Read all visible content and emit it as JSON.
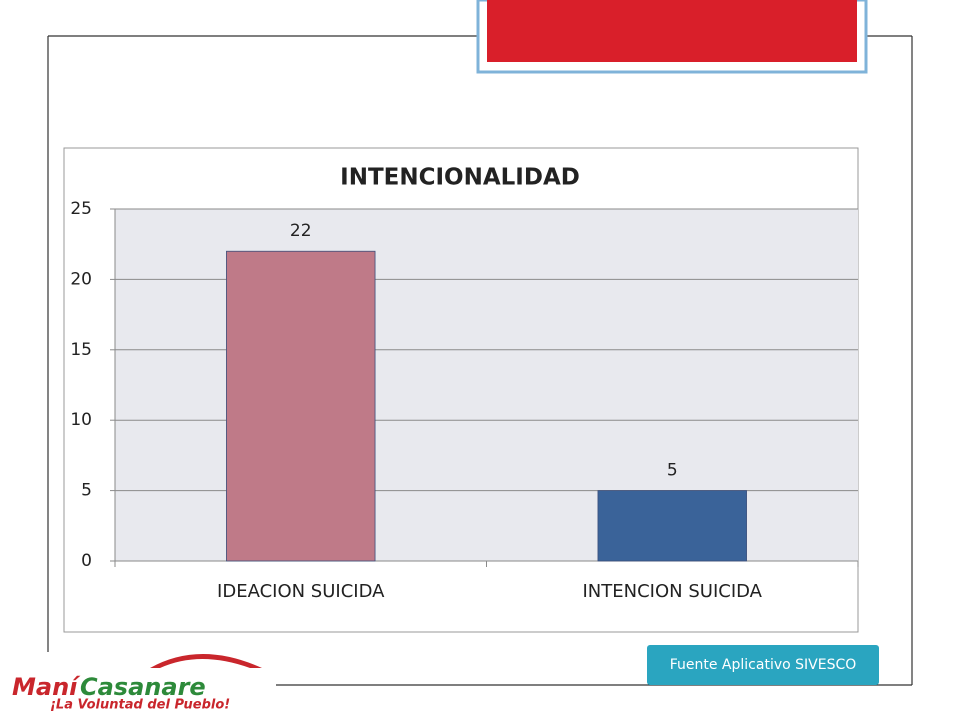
{
  "chart_data": {
    "type": "bar",
    "title": "INTENCIONALIDAD",
    "categories": [
      "IDEACION SUICIDA",
      "INTENCION SUICIDA"
    ],
    "values": [
      22,
      5
    ],
    "colors": [
      "#bf7a88",
      "#3a6399"
    ],
    "ylim": [
      0,
      25
    ],
    "yticks": [
      0,
      5,
      10,
      15,
      20,
      25
    ],
    "grid": true
  },
  "source": "Fuente Aplicativo SIVESCO",
  "logo": {
    "name_part1": "Maní",
    "name_part2": "Casanare",
    "slogan": "¡La Voluntad del Pueblo!"
  }
}
